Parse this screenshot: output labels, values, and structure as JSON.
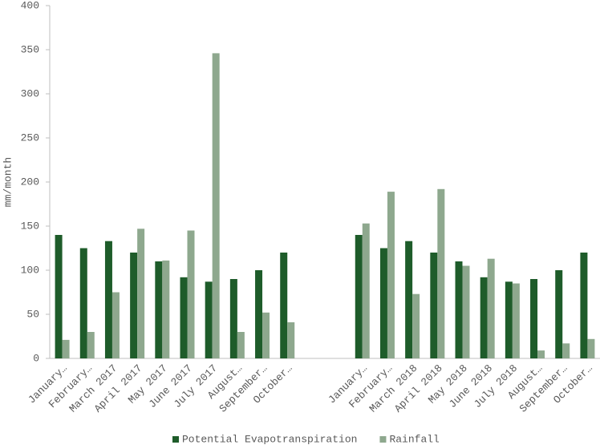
{
  "chart_data": {
    "type": "bar",
    "y_label": "mm/month",
    "categories": [
      "January…",
      "February…",
      "March 2017",
      "April 2017",
      "May 2017",
      "June 2017",
      "July 2017",
      "August…",
      "September…",
      "October…",
      null,
      null,
      "January…",
      "February…",
      "March 2018",
      "April 2018",
      "May 2018",
      "June 2018",
      "July 2018",
      "August…",
      "September…",
      "October…"
    ],
    "series": [
      {
        "name": "Potential Evapotranspiration",
        "color": "#1e5c2a",
        "values": [
          140,
          125,
          133,
          120,
          110,
          92,
          87,
          90,
          100,
          120,
          null,
          null,
          140,
          125,
          133,
          120,
          110,
          92,
          87,
          90,
          100,
          120
        ]
      },
      {
        "name": "Rainfall",
        "color": "#8ea88e",
        "values": [
          21,
          30,
          75,
          147,
          111,
          145,
          346,
          30,
          52,
          41,
          null,
          null,
          153,
          189,
          73,
          192,
          105,
          113,
          85,
          9,
          17,
          22
        ]
      }
    ],
    "ylim": [
      0,
      400
    ],
    "yticks": [
      0,
      50,
      100,
      150,
      200,
      250,
      300,
      350,
      400
    ],
    "legend": "bottom"
  }
}
